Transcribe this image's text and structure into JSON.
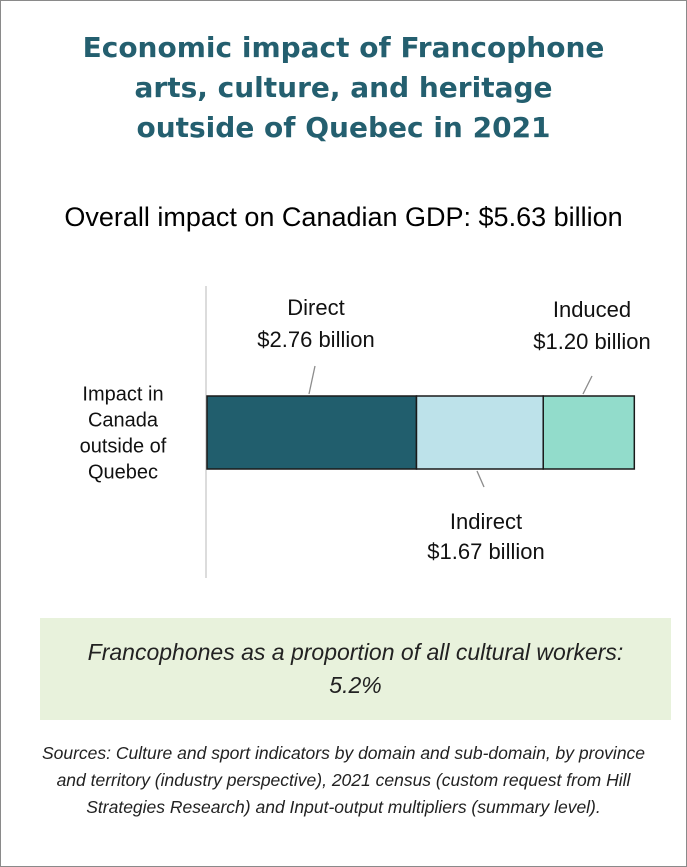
{
  "title_lines": [
    "Economic impact of Francophone",
    "arts, culture, and heritage",
    "outside of Quebec in 2021"
  ],
  "subtitle": "Overall impact on Canadian GDP: $5.63 billion",
  "chart_data": {
    "type": "bar",
    "orientation": "horizontal",
    "stacked": true,
    "categories": [
      "Impact in Canada outside of Quebec"
    ],
    "category_label_lines": [
      "Impact in",
      "Canada",
      "outside of",
      "Quebec"
    ],
    "series": [
      {
        "name": "Direct",
        "values": [
          2.76
        ],
        "label": "$2.76 billion",
        "color": "#215e6d",
        "label_position": "above"
      },
      {
        "name": "Indirect",
        "values": [
          1.67
        ],
        "label": "$1.67 billion",
        "color": "#bde2ea",
        "label_position": "below"
      },
      {
        "name": "Induced",
        "values": [
          1.2
        ],
        "label": "$1.20 billion",
        "color": "#92dccb",
        "label_position": "above"
      }
    ],
    "grid": false,
    "legend": "none"
  },
  "callout": "Francophones as a proportion of all cultural workers: 5.2%",
  "sources": "Sources: Culture and sport indicators by domain and sub-domain, by province and territory  (industry perspective), 2021 census (custom request from Hill Strategies Research) and Input-output multipliers (summary level)."
}
